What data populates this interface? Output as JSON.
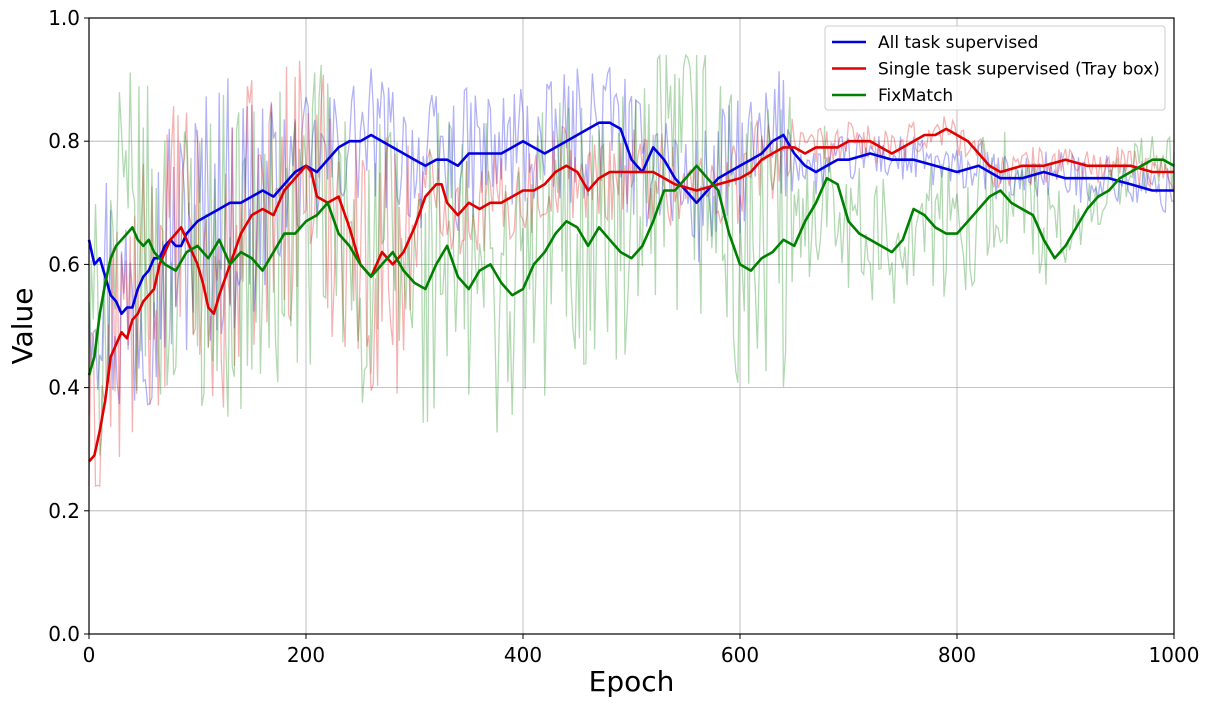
{
  "chart_data": {
    "type": "line",
    "xlabel": "Epoch",
    "ylabel": "Value",
    "xlim": [
      0,
      1000
    ],
    "ylim": [
      0,
      1.0
    ],
    "xticks": [
      0,
      200,
      400,
      600,
      800,
      1000
    ],
    "yticks": [
      0.0,
      0.2,
      0.4,
      0.6,
      0.8,
      1.0
    ],
    "ytick_labels": [
      "0.0",
      "0.2",
      "0.4",
      "0.6",
      "0.8",
      "1.0"
    ],
    "grid": true,
    "legend_position": "top-right",
    "series": [
      {
        "name": "All task supervised",
        "color": "#0000e0",
        "smoothed": [
          [
            0,
            0.64
          ],
          [
            5,
            0.6
          ],
          [
            10,
            0.61
          ],
          [
            15,
            0.58
          ],
          [
            20,
            0.55
          ],
          [
            25,
            0.54
          ],
          [
            30,
            0.52
          ],
          [
            35,
            0.53
          ],
          [
            40,
            0.53
          ],
          [
            45,
            0.56
          ],
          [
            50,
            0.58
          ],
          [
            55,
            0.59
          ],
          [
            60,
            0.61
          ],
          [
            65,
            0.61
          ],
          [
            70,
            0.63
          ],
          [
            75,
            0.64
          ],
          [
            80,
            0.63
          ],
          [
            85,
            0.63
          ],
          [
            90,
            0.65
          ],
          [
            95,
            0.66
          ],
          [
            100,
            0.67
          ],
          [
            110,
            0.68
          ],
          [
            120,
            0.69
          ],
          [
            130,
            0.7
          ],
          [
            140,
            0.7
          ],
          [
            150,
            0.71
          ],
          [
            160,
            0.72
          ],
          [
            170,
            0.71
          ],
          [
            180,
            0.73
          ],
          [
            190,
            0.75
          ],
          [
            200,
            0.76
          ],
          [
            210,
            0.75
          ],
          [
            220,
            0.77
          ],
          [
            230,
            0.79
          ],
          [
            240,
            0.8
          ],
          [
            250,
            0.8
          ],
          [
            260,
            0.81
          ],
          [
            270,
            0.8
          ],
          [
            280,
            0.79
          ],
          [
            290,
            0.78
          ],
          [
            300,
            0.77
          ],
          [
            310,
            0.76
          ],
          [
            320,
            0.77
          ],
          [
            330,
            0.77
          ],
          [
            340,
            0.76
          ],
          [
            350,
            0.78
          ],
          [
            360,
            0.78
          ],
          [
            370,
            0.78
          ],
          [
            380,
            0.78
          ],
          [
            390,
            0.79
          ],
          [
            400,
            0.8
          ],
          [
            410,
            0.79
          ],
          [
            420,
            0.78
          ],
          [
            430,
            0.79
          ],
          [
            440,
            0.8
          ],
          [
            450,
            0.81
          ],
          [
            460,
            0.82
          ],
          [
            470,
            0.83
          ],
          [
            480,
            0.83
          ],
          [
            490,
            0.82
          ],
          [
            500,
            0.77
          ],
          [
            510,
            0.75
          ],
          [
            520,
            0.79
          ],
          [
            530,
            0.77
          ],
          [
            540,
            0.74
          ],
          [
            550,
            0.72
          ],
          [
            560,
            0.7
          ],
          [
            570,
            0.72
          ],
          [
            580,
            0.74
          ],
          [
            590,
            0.75
          ],
          [
            600,
            0.76
          ],
          [
            610,
            0.77
          ],
          [
            620,
            0.78
          ],
          [
            630,
            0.8
          ],
          [
            640,
            0.81
          ],
          [
            650,
            0.78
          ],
          [
            660,
            0.76
          ],
          [
            670,
            0.75
          ],
          [
            680,
            0.76
          ],
          [
            690,
            0.77
          ],
          [
            700,
            0.77
          ],
          [
            720,
            0.78
          ],
          [
            740,
            0.77
          ],
          [
            760,
            0.77
          ],
          [
            780,
            0.76
          ],
          [
            800,
            0.75
          ],
          [
            820,
            0.76
          ],
          [
            840,
            0.74
          ],
          [
            860,
            0.74
          ],
          [
            880,
            0.75
          ],
          [
            900,
            0.74
          ],
          [
            920,
            0.74
          ],
          [
            940,
            0.74
          ],
          [
            960,
            0.73
          ],
          [
            980,
            0.72
          ],
          [
            1000,
            0.72
          ]
        ]
      },
      {
        "name": "Single task supervised (Tray box)",
        "color": "#e00000",
        "smoothed": [
          [
            0,
            0.28
          ],
          [
            5,
            0.29
          ],
          [
            10,
            0.33
          ],
          [
            15,
            0.38
          ],
          [
            20,
            0.45
          ],
          [
            25,
            0.47
          ],
          [
            30,
            0.49
          ],
          [
            35,
            0.48
          ],
          [
            40,
            0.51
          ],
          [
            45,
            0.52
          ],
          [
            50,
            0.54
          ],
          [
            55,
            0.55
          ],
          [
            60,
            0.56
          ],
          [
            65,
            0.6
          ],
          [
            70,
            0.62
          ],
          [
            75,
            0.64
          ],
          [
            80,
            0.65
          ],
          [
            85,
            0.66
          ],
          [
            90,
            0.64
          ],
          [
            95,
            0.62
          ],
          [
            100,
            0.6
          ],
          [
            105,
            0.57
          ],
          [
            110,
            0.53
          ],
          [
            115,
            0.52
          ],
          [
            120,
            0.55
          ],
          [
            130,
            0.6
          ],
          [
            140,
            0.65
          ],
          [
            150,
            0.68
          ],
          [
            160,
            0.69
          ],
          [
            170,
            0.68
          ],
          [
            180,
            0.72
          ],
          [
            190,
            0.74
          ],
          [
            200,
            0.76
          ],
          [
            205,
            0.75
          ],
          [
            210,
            0.71
          ],
          [
            220,
            0.7
          ],
          [
            230,
            0.71
          ],
          [
            240,
            0.66
          ],
          [
            250,
            0.6
          ],
          [
            260,
            0.58
          ],
          [
            270,
            0.62
          ],
          [
            280,
            0.6
          ],
          [
            290,
            0.62
          ],
          [
            300,
            0.66
          ],
          [
            310,
            0.71
          ],
          [
            320,
            0.73
          ],
          [
            325,
            0.73
          ],
          [
            330,
            0.7
          ],
          [
            340,
            0.68
          ],
          [
            350,
            0.7
          ],
          [
            360,
            0.69
          ],
          [
            370,
            0.7
          ],
          [
            380,
            0.7
          ],
          [
            390,
            0.71
          ],
          [
            400,
            0.72
          ],
          [
            410,
            0.72
          ],
          [
            420,
            0.73
          ],
          [
            430,
            0.75
          ],
          [
            440,
            0.76
          ],
          [
            450,
            0.75
          ],
          [
            460,
            0.72
          ],
          [
            470,
            0.74
          ],
          [
            480,
            0.75
          ],
          [
            490,
            0.75
          ],
          [
            500,
            0.75
          ],
          [
            520,
            0.75
          ],
          [
            540,
            0.73
          ],
          [
            560,
            0.72
          ],
          [
            580,
            0.73
          ],
          [
            600,
            0.74
          ],
          [
            610,
            0.75
          ],
          [
            620,
            0.77
          ],
          [
            630,
            0.78
          ],
          [
            640,
            0.79
          ],
          [
            650,
            0.79
          ],
          [
            660,
            0.78
          ],
          [
            670,
            0.79
          ],
          [
            680,
            0.79
          ],
          [
            690,
            0.79
          ],
          [
            700,
            0.8
          ],
          [
            710,
            0.8
          ],
          [
            720,
            0.8
          ],
          [
            730,
            0.79
          ],
          [
            740,
            0.78
          ],
          [
            750,
            0.79
          ],
          [
            760,
            0.8
          ],
          [
            770,
            0.81
          ],
          [
            780,
            0.81
          ],
          [
            790,
            0.82
          ],
          [
            800,
            0.81
          ],
          [
            810,
            0.8
          ],
          [
            820,
            0.78
          ],
          [
            830,
            0.76
          ],
          [
            840,
            0.75
          ],
          [
            860,
            0.76
          ],
          [
            880,
            0.76
          ],
          [
            900,
            0.77
          ],
          [
            920,
            0.76
          ],
          [
            940,
            0.76
          ],
          [
            960,
            0.76
          ],
          [
            980,
            0.75
          ],
          [
            1000,
            0.75
          ]
        ]
      },
      {
        "name": "FixMatch",
        "color": "#008000",
        "smoothed": [
          [
            0,
            0.42
          ],
          [
            5,
            0.45
          ],
          [
            10,
            0.52
          ],
          [
            15,
            0.57
          ],
          [
            20,
            0.61
          ],
          [
            25,
            0.63
          ],
          [
            30,
            0.64
          ],
          [
            35,
            0.65
          ],
          [
            40,
            0.66
          ],
          [
            45,
            0.64
          ],
          [
            50,
            0.63
          ],
          [
            55,
            0.64
          ],
          [
            60,
            0.62
          ],
          [
            70,
            0.6
          ],
          [
            80,
            0.59
          ],
          [
            90,
            0.62
          ],
          [
            100,
            0.63
          ],
          [
            110,
            0.61
          ],
          [
            120,
            0.64
          ],
          [
            130,
            0.6
          ],
          [
            140,
            0.62
          ],
          [
            150,
            0.61
          ],
          [
            160,
            0.59
          ],
          [
            170,
            0.62
          ],
          [
            180,
            0.65
          ],
          [
            190,
            0.65
          ],
          [
            200,
            0.67
          ],
          [
            210,
            0.68
          ],
          [
            220,
            0.7
          ],
          [
            230,
            0.65
          ],
          [
            240,
            0.63
          ],
          [
            250,
            0.6
          ],
          [
            260,
            0.58
          ],
          [
            270,
            0.6
          ],
          [
            280,
            0.62
          ],
          [
            290,
            0.59
          ],
          [
            300,
            0.57
          ],
          [
            310,
            0.56
          ],
          [
            320,
            0.6
          ],
          [
            330,
            0.63
          ],
          [
            340,
            0.58
          ],
          [
            350,
            0.56
          ],
          [
            360,
            0.59
          ],
          [
            370,
            0.6
          ],
          [
            380,
            0.57
          ],
          [
            390,
            0.55
          ],
          [
            400,
            0.56
          ],
          [
            410,
            0.6
          ],
          [
            420,
            0.62
          ],
          [
            430,
            0.65
          ],
          [
            440,
            0.67
          ],
          [
            450,
            0.66
          ],
          [
            460,
            0.63
          ],
          [
            470,
            0.66
          ],
          [
            480,
            0.64
          ],
          [
            490,
            0.62
          ],
          [
            500,
            0.61
          ],
          [
            510,
            0.63
          ],
          [
            520,
            0.67
          ],
          [
            530,
            0.72
          ],
          [
            540,
            0.72
          ],
          [
            550,
            0.74
          ],
          [
            560,
            0.76
          ],
          [
            570,
            0.74
          ],
          [
            580,
            0.72
          ],
          [
            590,
            0.65
          ],
          [
            600,
            0.6
          ],
          [
            610,
            0.59
          ],
          [
            620,
            0.61
          ],
          [
            630,
            0.62
          ],
          [
            640,
            0.64
          ],
          [
            650,
            0.63
          ],
          [
            660,
            0.67
          ],
          [
            670,
            0.7
          ],
          [
            680,
            0.74
          ],
          [
            690,
            0.73
          ],
          [
            700,
            0.67
          ],
          [
            710,
            0.65
          ],
          [
            720,
            0.64
          ],
          [
            730,
            0.63
          ],
          [
            740,
            0.62
          ],
          [
            750,
            0.64
          ],
          [
            760,
            0.69
          ],
          [
            770,
            0.68
          ],
          [
            780,
            0.66
          ],
          [
            790,
            0.65
          ],
          [
            800,
            0.65
          ],
          [
            810,
            0.67
          ],
          [
            820,
            0.69
          ],
          [
            830,
            0.71
          ],
          [
            840,
            0.72
          ],
          [
            850,
            0.7
          ],
          [
            860,
            0.69
          ],
          [
            870,
            0.68
          ],
          [
            880,
            0.64
          ],
          [
            890,
            0.61
          ],
          [
            900,
            0.63
          ],
          [
            910,
            0.66
          ],
          [
            920,
            0.69
          ],
          [
            930,
            0.71
          ],
          [
            940,
            0.72
          ],
          [
            950,
            0.74
          ],
          [
            960,
            0.75
          ],
          [
            970,
            0.76
          ],
          [
            980,
            0.77
          ],
          [
            990,
            0.77
          ],
          [
            1000,
            0.76
          ]
        ]
      }
    ]
  }
}
